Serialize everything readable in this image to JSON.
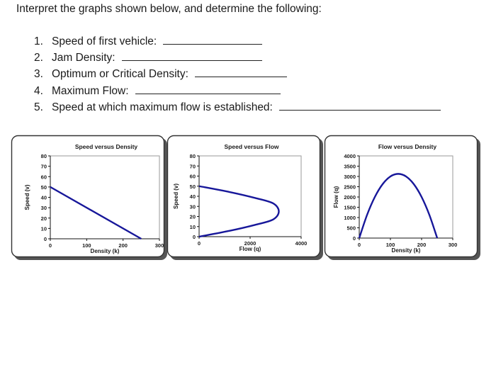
{
  "intro": "Interpret the graphs shown below, and determine the following:",
  "questions": [
    {
      "num": "1.",
      "text": "Speed of first vehicle:"
    },
    {
      "num": "2.",
      "text": "Jam Density:"
    },
    {
      "num": "3.",
      "text": "Optimum or Critical Density:"
    },
    {
      "num": "4.",
      "text": "Maximum Flow:"
    },
    {
      "num": "5.",
      "text": "Speed at which maximum flow is established:"
    }
  ],
  "chart_data": [
    {
      "type": "line",
      "title": "Speed versus Density",
      "xlabel": "Density (k)",
      "ylabel": "Speed (v)",
      "xlim": [
        0,
        300
      ],
      "ylim": [
        0,
        80
      ],
      "xticks": [
        "0",
        "100",
        "200",
        "300"
      ],
      "yticks": [
        "0",
        "10",
        "20",
        "30",
        "40",
        "50",
        "60",
        "70",
        "80"
      ],
      "x": [
        0,
        250
      ],
      "y": [
        50,
        0
      ],
      "grid": false
    },
    {
      "type": "line",
      "title": "Speed versus Flow",
      "xlabel": "Flow (q)",
      "ylabel": "Speed (v)",
      "xlim": [
        0,
        4000
      ],
      "ylim": [
        0,
        80
      ],
      "xticks": [
        "0",
        "2000",
        "4000"
      ],
      "yticks": [
        "0",
        "10",
        "20",
        "30",
        "40",
        "50",
        "60",
        "70",
        "80"
      ],
      "x": [
        0,
        1200,
        2200,
        2900,
        3125,
        2900,
        2200,
        1200,
        0
      ],
      "y": [
        50,
        44.2,
        38.3,
        33.0,
        25,
        17.0,
        11.7,
        5.8,
        0
      ],
      "grid": false
    },
    {
      "type": "line",
      "title": "Flow versus Density",
      "xlabel": "Density (k)",
      "ylabel": "Flow (q)",
      "xlim": [
        0,
        300
      ],
      "ylim": [
        0,
        4000
      ],
      "xticks": [
        "0",
        "100",
        "200",
        "300"
      ],
      "yticks": [
        "0",
        "500",
        "1000",
        "1500",
        "2000",
        "2500",
        "3000",
        "3500",
        "4000"
      ],
      "x": [
        0,
        25,
        50,
        75,
        100,
        125,
        150,
        175,
        200,
        225,
        250
      ],
      "y": [
        0,
        1125,
        2000,
        2625,
        3000,
        3125,
        3000,
        2625,
        2000,
        1125,
        0
      ],
      "grid": false
    }
  ]
}
